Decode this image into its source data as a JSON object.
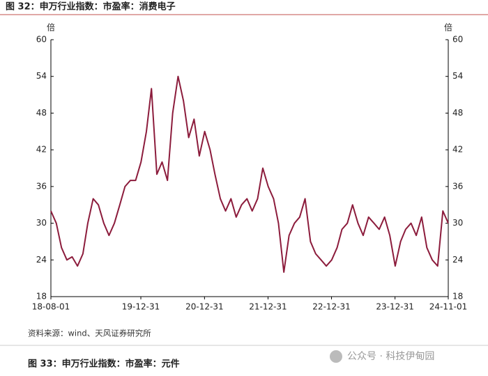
{
  "chart_data": {
    "type": "line",
    "title": "图 32：申万行业指数：市盈率：消费电子",
    "y_unit": "倍",
    "y2_unit": "倍",
    "x": [
      "18-08-01",
      "18-09-01",
      "18-10-01",
      "18-11-01",
      "18-12-01",
      "19-01-01",
      "19-02-01",
      "19-03-01",
      "19-04-01",
      "19-05-01",
      "19-06-01",
      "19-07-01",
      "19-08-01",
      "19-09-01",
      "19-10-01",
      "19-11-01",
      "19-12-01",
      "20-01-01",
      "20-02-01",
      "20-03-01",
      "20-04-01",
      "20-05-01",
      "20-06-01",
      "20-07-01",
      "20-08-01",
      "20-09-01",
      "20-10-01",
      "20-11-01",
      "20-12-01",
      "21-01-01",
      "21-02-01",
      "21-03-01",
      "21-04-01",
      "21-05-01",
      "21-06-01",
      "21-07-01",
      "21-08-01",
      "21-09-01",
      "21-10-01",
      "21-11-01",
      "21-12-01",
      "22-01-01",
      "22-02-01",
      "22-03-01",
      "22-04-01",
      "22-05-01",
      "22-06-01",
      "22-07-01",
      "22-08-01",
      "22-09-01",
      "22-10-01",
      "22-11-01",
      "22-12-01",
      "23-01-01",
      "23-02-01",
      "23-03-01",
      "23-04-01",
      "23-05-01",
      "23-06-01",
      "23-07-01",
      "23-08-01",
      "23-09-01",
      "23-10-01",
      "23-11-01",
      "23-12-01",
      "24-01-01",
      "24-02-01",
      "24-03-01",
      "24-04-01",
      "24-05-01",
      "24-06-01",
      "24-07-01",
      "24-08-01",
      "24-09-01",
      "24-10-01",
      "24-11-01"
    ],
    "series": [
      {
        "name": "市盈率",
        "color": "#8c1c3c",
        "values": [
          32,
          30,
          26,
          24,
          24.5,
          23,
          25,
          30,
          34,
          33,
          30,
          28,
          30,
          33,
          36,
          37,
          37,
          40,
          45,
          52,
          38,
          40,
          37,
          48,
          54,
          50,
          44,
          47,
          41,
          45,
          42,
          38,
          34,
          32,
          34,
          31,
          33,
          34,
          32,
          34,
          39,
          36,
          34,
          30,
          22,
          28,
          30,
          31,
          34,
          27,
          25,
          24,
          23,
          24,
          26,
          29,
          30,
          33,
          30,
          28,
          31,
          30,
          29,
          31,
          28,
          23,
          27,
          29,
          30,
          28,
          31,
          26,
          24,
          23,
          32,
          30
        ]
      }
    ],
    "xticks": [
      "18-08-01",
      "19-12-31",
      "20-12-31",
      "21-12-31",
      "22-12-31",
      "23-12-31",
      "24-11-01"
    ],
    "ylim": [
      18,
      60
    ],
    "yticks": [
      18,
      24,
      30,
      36,
      42,
      48,
      54,
      60
    ],
    "y2lim": [
      18,
      60
    ],
    "y2ticks": [
      18,
      24,
      30,
      36,
      42,
      48,
      54,
      60
    ],
    "grid": false,
    "source": "资料来源：wind、天风证券研究所"
  },
  "next_figure_title": "图 33：申万行业指数：市盈率：元件",
  "watermark": "公众号 · 科技伊甸园"
}
